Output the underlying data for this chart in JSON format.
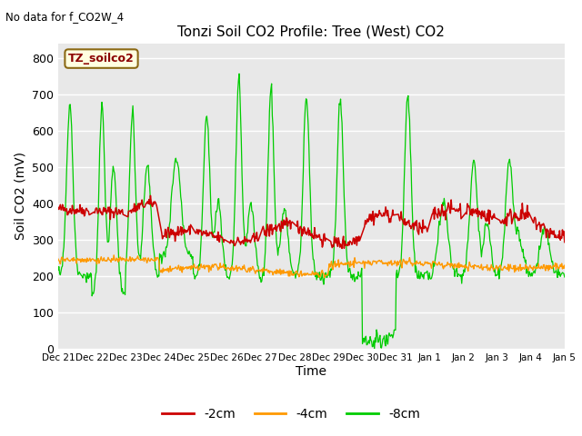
{
  "title": "Tonzi Soil CO2 Profile: Tree (West) CO2",
  "subtitle": "No data for f_CO2W_4",
  "ylabel": "Soil CO2 (mV)",
  "xlabel": "Time",
  "box_label": "TZ_soilco2",
  "ylim": [
    0,
    840
  ],
  "yticks": [
    0,
    100,
    200,
    300,
    400,
    500,
    600,
    700,
    800
  ],
  "plot_bg_color": "#e8e8e8",
  "fig_bg_color": "#ffffff",
  "line_colors": {
    "2cm": "#cc0000",
    "4cm": "#ff9900",
    "8cm": "#00cc00"
  },
  "legend_labels": [
    "-2cm",
    "-4cm",
    "-8cm"
  ],
  "x_tick_labels": [
    "Dec 21",
    "Dec 22",
    "Dec 23",
    "Dec 24",
    "Dec 25",
    "Dec 26",
    "Dec 27",
    "Dec 28",
    "Dec 29",
    "Dec 30",
    "Dec 31",
    "Jan 1",
    "Jan 2",
    "Jan 3",
    "Jan 4",
    "Jan 5"
  ]
}
